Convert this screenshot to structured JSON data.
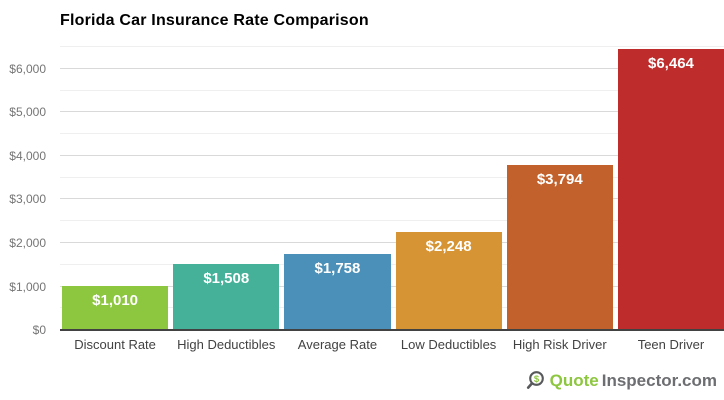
{
  "chart_data": {
    "type": "bar",
    "title": "Florida Car Insurance Rate Comparison",
    "categories": [
      "Discount Rate",
      "High Deductibles",
      "Average Rate",
      "Low Deductibles",
      "High Risk Driver",
      "Teen Driver"
    ],
    "values": [
      1010,
      1508,
      1758,
      2248,
      3794,
      6464
    ],
    "value_labels": [
      "$1,010",
      "$1,508",
      "$1,758",
      "$2,248",
      "$3,794",
      "$6,464"
    ],
    "bar_colors": [
      "#8DC63F",
      "#45B199",
      "#4A90B8",
      "#D69434",
      "#C2612C",
      "#BE2C2C"
    ],
    "xlabel": "",
    "ylabel": "",
    "ylim": [
      0,
      6550
    ],
    "grid": true,
    "legend": false,
    "yticks": [
      {
        "value": 0,
        "label": "$0"
      },
      {
        "value": 1000,
        "label": "$1,000"
      },
      {
        "value": 2000,
        "label": "$2,000"
      },
      {
        "value": 3000,
        "label": "$3,000"
      },
      {
        "value": 4000,
        "label": "$4,000"
      },
      {
        "value": 5000,
        "label": "$5,000"
      },
      {
        "value": 6000,
        "label": "$6,000"
      }
    ],
    "minor_gridlines": [
      500,
      1500,
      2500,
      3500,
      4500,
      5500,
      6500
    ],
    "colors": {
      "grid_major": "#d9d9d9",
      "grid_minor": "#efefef",
      "axis_line": "#424242",
      "ytick_text": "#757575",
      "xtick_text": "#424242",
      "value_text": "#ffffff",
      "title_text": "#000000"
    }
  },
  "watermark": {
    "icon": "dollar-magnifier-icon",
    "icon_glyph": "$",
    "quote_text": "Quote",
    "rest_text": "Inspector.com",
    "green": "#8DC63F",
    "gray": "#6D6E71",
    "icon_stroke": "#58595B"
  }
}
